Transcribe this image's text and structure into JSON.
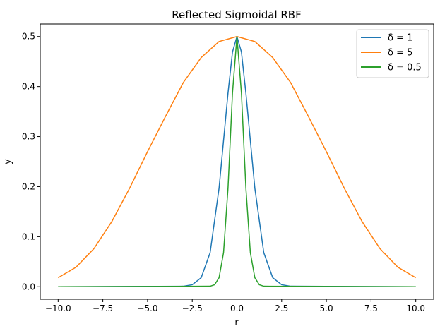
{
  "chart_data": {
    "type": "line",
    "title": "Reflected Sigmoidal RBF",
    "xlabel": "r",
    "ylabel": "y",
    "xlim": [
      -11.0,
      11.0
    ],
    "ylim": [
      -0.025,
      0.525
    ],
    "x_ticks": [
      -10.0,
      -7.5,
      -5.0,
      -2.5,
      0.0,
      2.5,
      5.0,
      7.5,
      10.0
    ],
    "x_tick_labels": [
      "−10.0",
      "−7.5",
      "−5.0",
      "−2.5",
      "0.0",
      "2.5",
      "5.0",
      "7.5",
      "10.0"
    ],
    "y_ticks": [
      0.0,
      0.1,
      0.2,
      0.3,
      0.4,
      0.5
    ],
    "y_tick_labels": [
      "0.0",
      "0.1",
      "0.2",
      "0.3",
      "0.4",
      "0.5"
    ],
    "grid": false,
    "legend_position": "upper right",
    "series": [
      {
        "name": "δ = 1",
        "color": "#1f77b4",
        "x": [
          -10,
          -3,
          -2.5,
          -2,
          -1.5,
          -1,
          -0.5,
          -0.25,
          0,
          0.25,
          0.5,
          1,
          1.5,
          2,
          2.5,
          3,
          10
        ],
        "y": [
          0.0,
          0.001,
          0.004,
          0.018,
          0.068,
          0.197,
          0.387,
          0.469,
          0.5,
          0.469,
          0.387,
          0.197,
          0.068,
          0.018,
          0.004,
          0.001,
          0.0
        ]
      },
      {
        "name": "δ = 5",
        "color": "#ff7f0e",
        "x": [
          -10,
          -9,
          -8,
          -7,
          -6,
          -5,
          -4,
          -3,
          -2,
          -1,
          0,
          1,
          2,
          3,
          4,
          5,
          6,
          7,
          8,
          9,
          10
        ],
        "y": [
          0.018,
          0.039,
          0.076,
          0.13,
          0.197,
          0.27,
          0.34,
          0.408,
          0.458,
          0.49,
          0.5,
          0.49,
          0.458,
          0.408,
          0.34,
          0.27,
          0.197,
          0.13,
          0.076,
          0.039,
          0.018
        ]
      },
      {
        "name": "δ = 0.5",
        "color": "#2ca02c",
        "x": [
          -10,
          -1.5,
          -1.25,
          -1,
          -0.75,
          -0.5,
          -0.25,
          0,
          0.25,
          0.5,
          0.75,
          1,
          1.25,
          1.5,
          10
        ],
        "y": [
          0.0,
          0.001,
          0.004,
          0.018,
          0.068,
          0.197,
          0.387,
          0.5,
          0.387,
          0.197,
          0.068,
          0.018,
          0.004,
          0.001,
          0.0
        ]
      }
    ]
  }
}
